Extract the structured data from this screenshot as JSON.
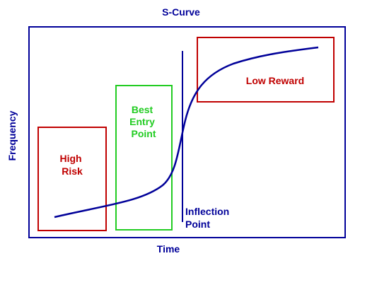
{
  "title": "S-Curve",
  "x_axis_label": "Time",
  "y_axis_label": "Frequency",
  "zones": [
    {
      "id": "high-risk",
      "lines": [
        "High",
        "Risk"
      ],
      "color": "#c00000"
    },
    {
      "id": "best-entry-point",
      "lines": [
        "Best",
        "Entry",
        "Point"
      ],
      "color": "#22cc22"
    },
    {
      "id": "low-reward",
      "lines": [
        "Low Reward"
      ],
      "color": "#c00000"
    }
  ],
  "inflection": {
    "lines": [
      "Inflection",
      "Point"
    ],
    "color": "#000099"
  },
  "colors": {
    "frame": "#000099",
    "curve": "#000099",
    "title": "#000099"
  }
}
